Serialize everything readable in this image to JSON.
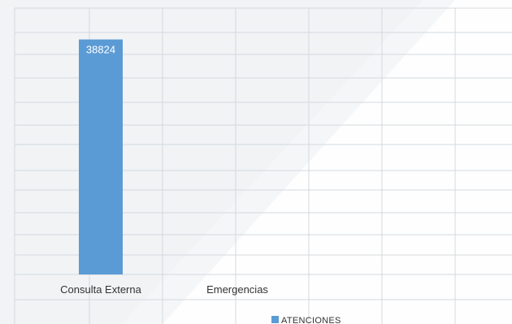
{
  "chart_data": {
    "type": "bar",
    "categories": [
      "Consulta Externa",
      "Emergencias"
    ],
    "series": [
      {
        "name": "ATENCIONES",
        "values": [
          38824,
          null
        ],
        "color": "#5b9bd5"
      }
    ],
    "data_labels": [
      "38824",
      ""
    ],
    "ylim": [
      0,
      44000
    ],
    "grid": true,
    "legend_position": "bottom"
  }
}
